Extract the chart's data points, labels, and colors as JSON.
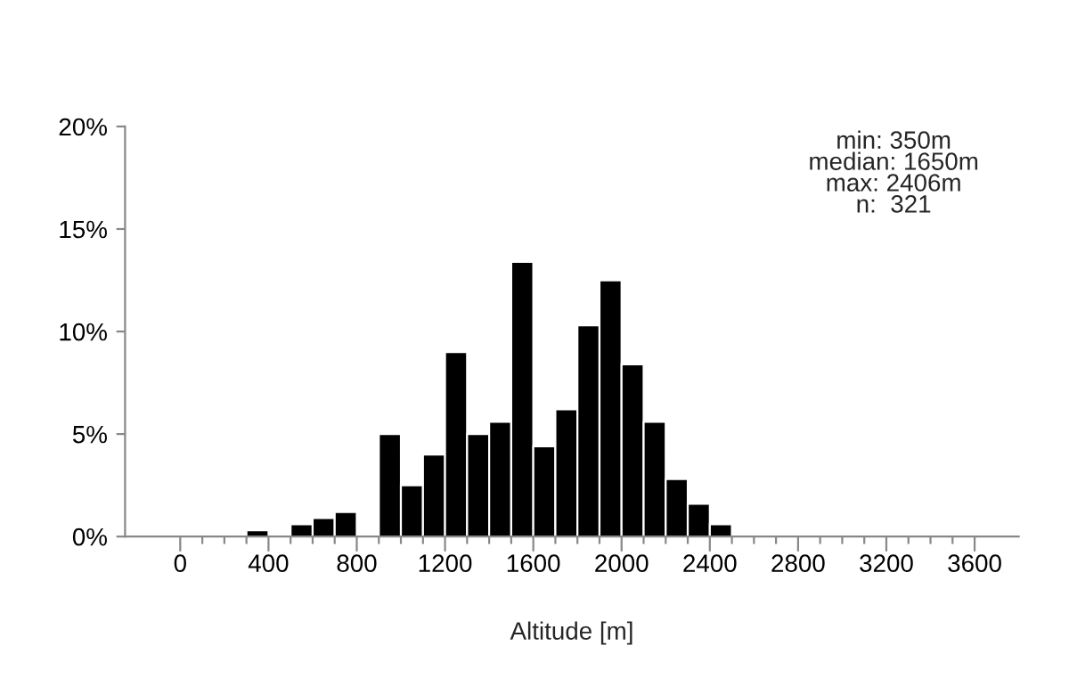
{
  "chart_data": {
    "type": "histogram",
    "xlabel": "Altitude [m]",
    "color": "#000000",
    "bins": [
      0,
      100,
      200,
      300,
      400,
      500,
      600,
      700,
      800,
      900,
      1000,
      1100,
      1200,
      1300,
      1400,
      1500,
      1600,
      1700,
      1800,
      1900,
      2000,
      2100,
      2200,
      2300,
      2400,
      2500,
      2600,
      2700,
      2800,
      2900,
      3000,
      3100,
      3200,
      3300,
      3400,
      3500,
      3600
    ],
    "values": [
      0,
      0,
      0,
      0.3,
      0,
      0.6,
      0.9,
      1.2,
      0,
      5.0,
      2.5,
      4.0,
      9.0,
      5.0,
      5.6,
      13.4,
      4.4,
      6.2,
      10.3,
      12.5,
      8.4,
      5.6,
      2.8,
      1.6,
      0.6,
      0,
      0,
      0,
      0,
      0,
      0,
      0,
      0,
      0,
      0,
      0
    ],
    "xlim": [
      -250,
      3800
    ],
    "ylim": [
      0,
      20
    ],
    "xticks": [
      0,
      {
        "value": 100,
        "label": null
      },
      {
        "value": 200,
        "label": null
      },
      {
        "value": 300,
        "label": null
      },
      400,
      {
        "value": 500,
        "label": null
      },
      {
        "value": 600,
        "label": null
      },
      {
        "value": 700,
        "label": null
      },
      800,
      {
        "value": 900,
        "label": null
      },
      {
        "value": 1000,
        "label": null
      },
      {
        "value": 1100,
        "label": null
      },
      1200,
      {
        "value": 1300,
        "label": null
      },
      {
        "value": 1400,
        "label": null
      },
      {
        "value": 1500,
        "label": null
      },
      1600,
      {
        "value": 1700,
        "label": null
      },
      {
        "value": 1800,
        "label": null
      },
      {
        "value": 1900,
        "label": null
      },
      2000,
      {
        "value": 2100,
        "label": null
      },
      {
        "value": 2200,
        "label": null
      },
      {
        "value": 2300,
        "label": null
      },
      2400,
      {
        "value": 2500,
        "label": null
      },
      {
        "value": 2600,
        "label": null
      },
      {
        "value": 2700,
        "label": null
      },
      2800,
      {
        "value": 2900,
        "label": null
      },
      {
        "value": 3000,
        "label": null
      },
      {
        "value": 3100,
        "label": null
      },
      3200,
      {
        "value": 3300,
        "label": null
      },
      {
        "value": 3400,
        "label": null
      },
      {
        "value": 3500,
        "label": null
      },
      3600
    ],
    "yticks": [
      {
        "value": 0,
        "label": "0%"
      },
      {
        "value": 5,
        "label": "5%"
      },
      {
        "value": 10,
        "label": "10%"
      },
      {
        "value": 15,
        "label": "15%"
      },
      {
        "value": 20,
        "label": "20%"
      }
    ],
    "grid": false,
    "legend": false,
    "annotations": [
      "min: 350m",
      "median: 1650m",
      "max: 2406m",
      "n:  321"
    ]
  }
}
